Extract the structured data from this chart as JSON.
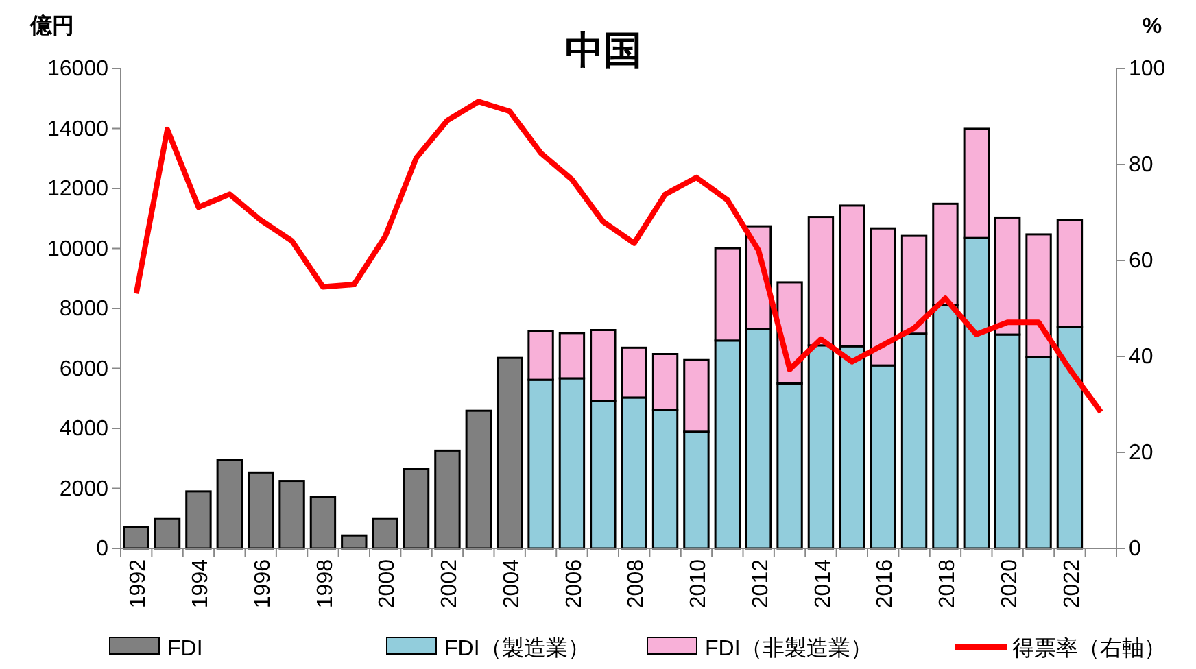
{
  "chart_data": {
    "type": "bar",
    "title": "中国",
    "ylabel": "億円",
    "y2label": "%",
    "stacked": true,
    "categories": [
      "1992",
      null,
      "1994",
      null,
      "1996",
      null,
      "1998",
      null,
      "2000",
      null,
      "2002",
      null,
      "2004",
      null,
      "2006",
      null,
      "2008",
      null,
      "2010",
      null,
      "2012",
      null,
      "2014",
      null,
      "2016",
      null,
      "2018",
      null,
      "2020",
      null,
      "2022",
      null
    ],
    "series": [
      {
        "name": "FDI",
        "color": "#808080",
        "values": [
          700,
          1000,
          1900,
          2940,
          2530,
          2250,
          1720,
          430,
          1000,
          2640,
          3260,
          4590,
          6350,
          null,
          null,
          null,
          null,
          null,
          null,
          null,
          null,
          null,
          null,
          null,
          null,
          null,
          null,
          null,
          null,
          null,
          null,
          null
        ]
      },
      {
        "name": "FDI（製造業）",
        "color": "#92cddc",
        "values": [
          null,
          null,
          null,
          null,
          null,
          null,
          null,
          null,
          null,
          null,
          null,
          null,
          null,
          5620,
          5670,
          4920,
          5030,
          4620,
          3890,
          6930,
          7310,
          5500,
          6770,
          6740,
          6100,
          7160,
          8110,
          10350,
          7130,
          6370,
          7390,
          null
        ]
      },
      {
        "name": "FDI（非製造業）",
        "color": "#f8b0d8",
        "values": [
          null,
          null,
          null,
          null,
          null,
          null,
          null,
          null,
          null,
          null,
          null,
          null,
          null,
          1630,
          1510,
          2360,
          1660,
          1860,
          2390,
          3080,
          3430,
          3370,
          4280,
          4690,
          4570,
          3260,
          3380,
          3640,
          3900,
          4100,
          3550,
          null
        ]
      },
      {
        "name": "得票率（右軸）",
        "type": "line",
        "axis": "y2",
        "color": "#ff0000",
        "values": [
          53.1,
          87.3,
          71.1,
          73.8,
          68.4,
          64.1,
          54.5,
          55.0,
          65.0,
          81.4,
          89.2,
          93.1,
          91.1,
          82.4,
          76.9,
          68.1,
          63.6,
          73.8,
          77.3,
          72.6,
          62.1,
          37.3,
          43.6,
          38.9,
          42.4,
          45.9,
          52.1,
          44.6,
          47.1,
          47.1,
          37.3,
          28.4
        ]
      }
    ],
    "ylim": [
      0,
      16000
    ],
    "yticks": [
      0,
      2000,
      4000,
      6000,
      8000,
      10000,
      12000,
      14000,
      16000
    ],
    "y2lim": [
      0,
      100
    ],
    "y2ticks": [
      0,
      20,
      40,
      60,
      80,
      100
    ],
    "legend": "bottom",
    "grid": false
  }
}
